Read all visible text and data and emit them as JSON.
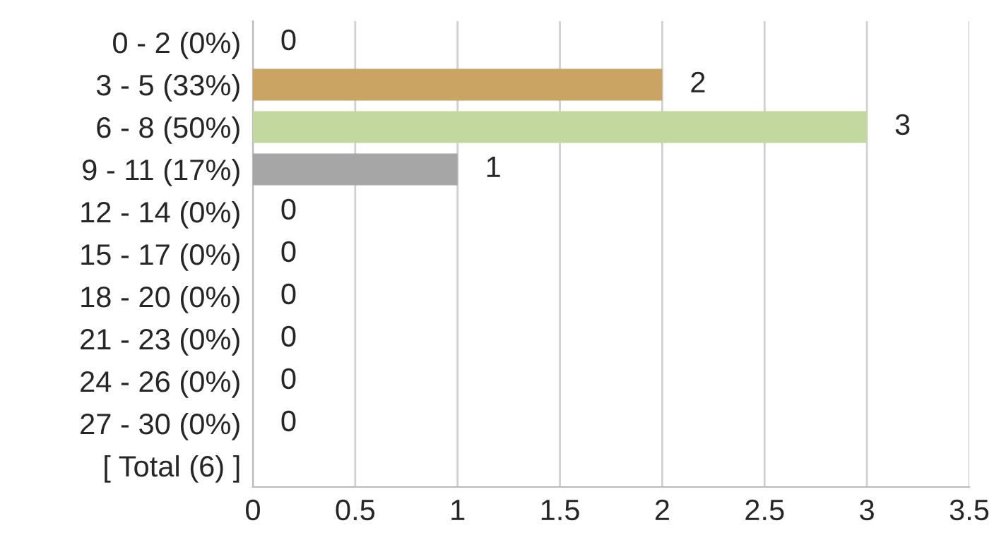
{
  "chart_data": {
    "type": "bar",
    "orientation": "horizontal",
    "categories": [
      "0 - 2 (0%)",
      "3 - 5 (33%)",
      "6 - 8 (50%)",
      "9 - 11 (17%)",
      "12 - 14 (0%)",
      "15 - 17 (0%)",
      "18 - 20 (0%)",
      "21 - 23 (0%)",
      "24 - 26 (0%)",
      "27 - 30 (0%)",
      "[ Total (6) ]"
    ],
    "values": [
      0,
      2,
      3,
      1,
      0,
      0,
      0,
      0,
      0,
      0,
      null
    ],
    "colors": [
      "#4f81bd",
      "#c9a463",
      "#c2d89e",
      "#a6a6a6",
      "#4f81bd",
      "#4f81bd",
      "#4f81bd",
      "#4f81bd",
      "#4f81bd",
      "#4f81bd",
      "#4f81bd"
    ],
    "value_labels": [
      "0",
      "2",
      "3",
      "1",
      "0",
      "0",
      "0",
      "0",
      "0",
      "0",
      null
    ],
    "xlim": [
      0,
      3.5
    ],
    "xticks": [
      0,
      0.5,
      1,
      1.5,
      2,
      2.5,
      3,
      3.5
    ],
    "grid": "x"
  }
}
